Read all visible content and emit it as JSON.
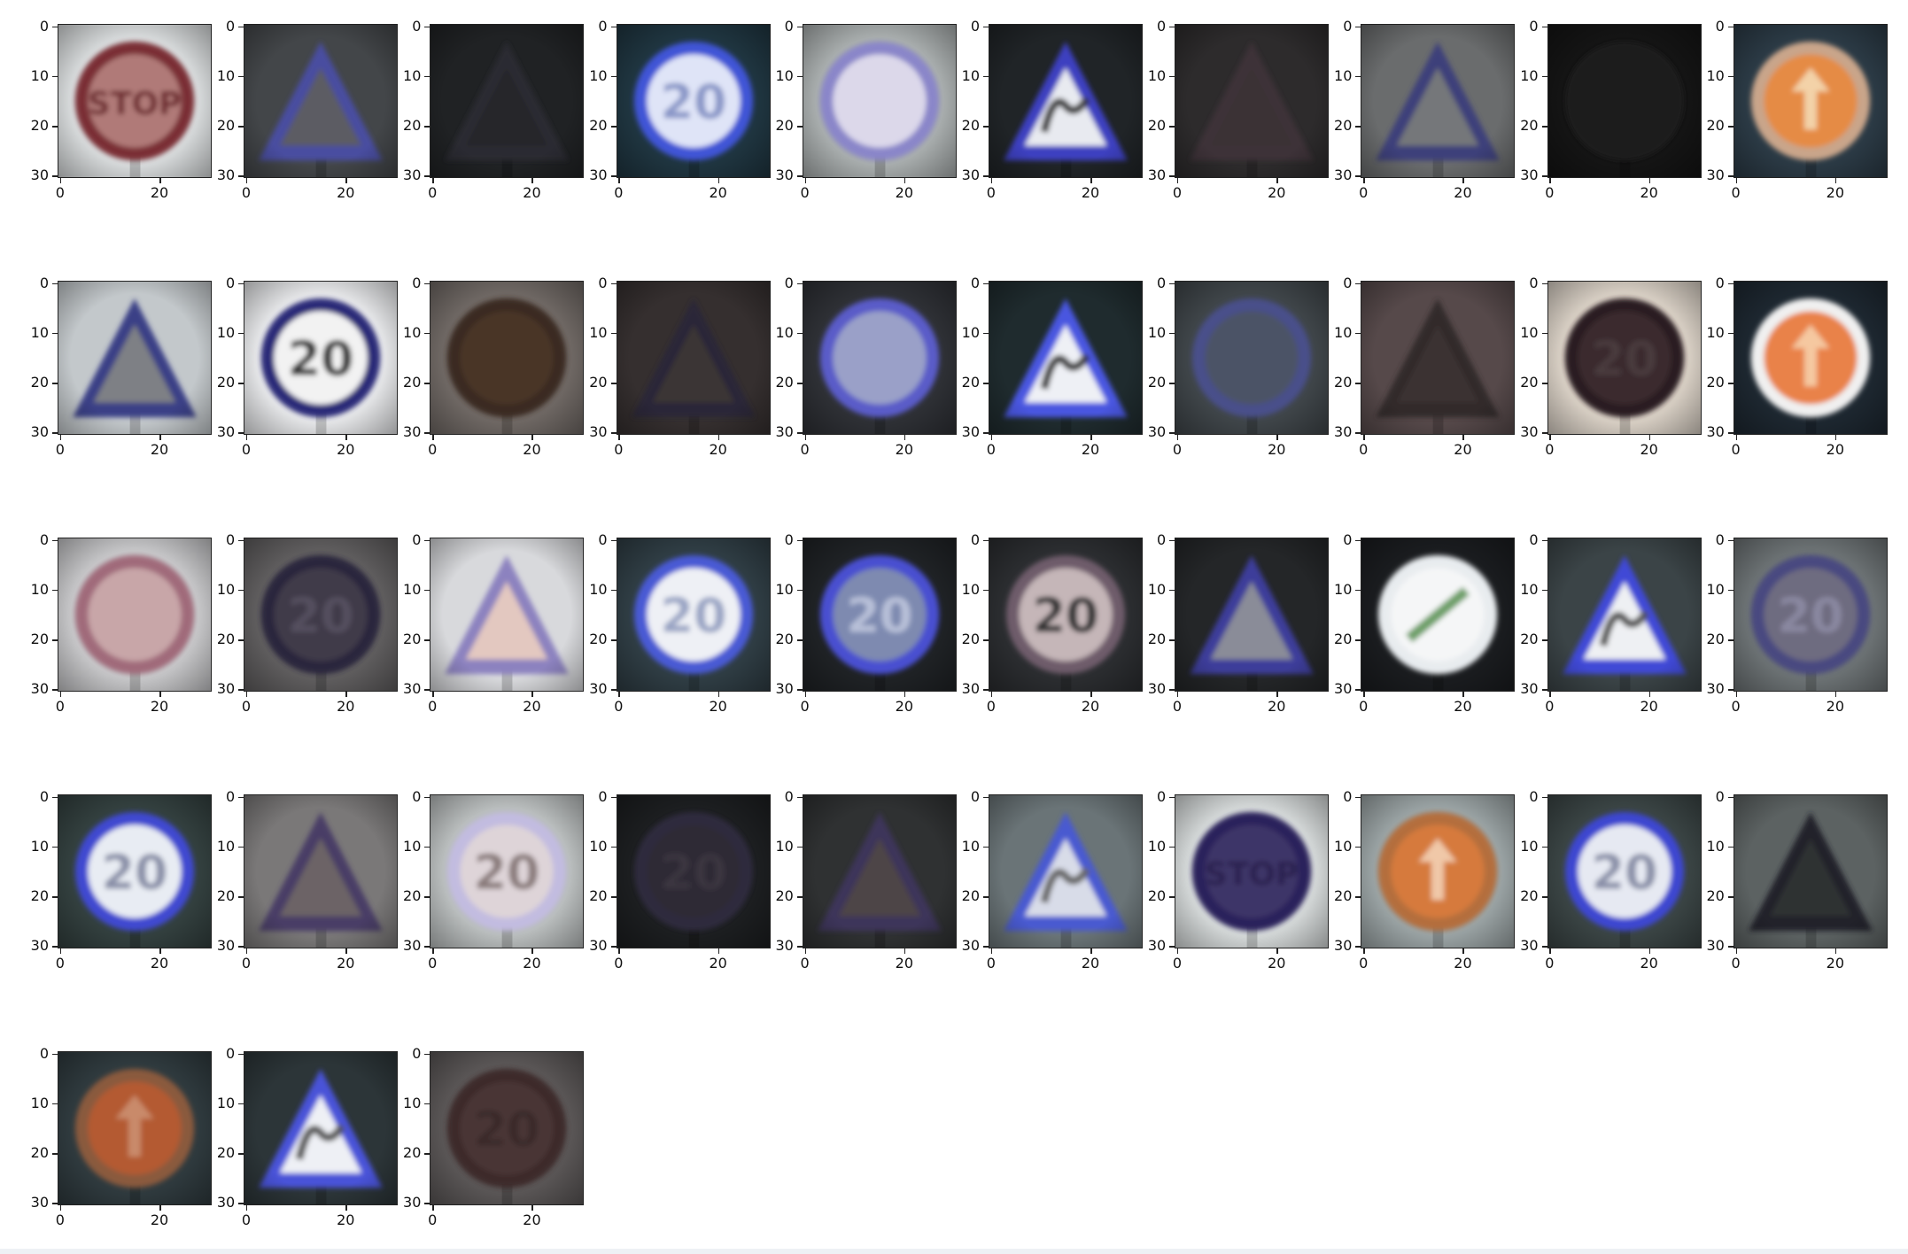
{
  "figure": {
    "columns": 10,
    "yticks": [
      "0",
      "10",
      "20",
      "30"
    ],
    "xticks": [
      "0",
      "20"
    ],
    "images": [
      {
        "shape": "circle",
        "bg": "#d7dadb",
        "edge": "#7a2f34",
        "fill": "#b07a78",
        "glyph": "STOP",
        "glyph_color": "#6d2b2e"
      },
      {
        "shape": "triangle",
        "bg": "#434649",
        "edge": "#4a4ea0",
        "fill": "#5b5c63",
        "glyph": "",
        "glyph_color": "#3a3a3d"
      },
      {
        "shape": "triangle",
        "bg": "#202224",
        "edge": "#2b2c33",
        "fill": "#26272a",
        "glyph": "",
        "glyph_color": "#222"
      },
      {
        "shape": "circle",
        "bg": "#1f3540",
        "edge": "#3f55d6",
        "fill": "#dfe4f7",
        "glyph": "20",
        "glyph_color": "#8a97c8"
      },
      {
        "shape": "circle",
        "bg": "#a8adad",
        "edge": "#8a86c9",
        "fill": "#dcd8ea",
        "glyph": "",
        "glyph_color": "#b8a8b8"
      },
      {
        "shape": "triangle",
        "bg": "#202427",
        "edge": "#3c3fc0",
        "fill": "#e8eaf0",
        "glyph": "bump",
        "glyph_color": "#3a3a3a"
      },
      {
        "shape": "triangle",
        "bg": "#2d2b2c",
        "edge": "#3e3338",
        "fill": "#3a3234",
        "glyph": "",
        "glyph_color": "#322"
      },
      {
        "shape": "triangle",
        "bg": "#6a6c6d",
        "edge": "#3e3f7a",
        "fill": "#75777a",
        "glyph": "",
        "glyph_color": "#555"
      },
      {
        "shape": "circle",
        "bg": "#141414",
        "edge": "#1c1a1b",
        "fill": "#1b1a1a",
        "glyph": "",
        "glyph_color": "#1e1e1e"
      },
      {
        "shape": "circle",
        "bg": "#2b3a45",
        "edge": "#c9a58a",
        "fill": "#e58b45",
        "glyph": "arrow",
        "glyph_color": "#f3d2a8"
      },
      {
        "shape": "triangle",
        "bg": "#c3c8cb",
        "edge": "#3b3f86",
        "fill": "#7e8085",
        "glyph": "",
        "glyph_color": "#555"
      },
      {
        "shape": "circle",
        "bg": "#e5e6e8",
        "edge": "#2c2a78",
        "fill": "#f2f2f2",
        "glyph": "20",
        "glyph_color": "#333"
      },
      {
        "shape": "circle",
        "bg": "#6f6864",
        "edge": "#3a2920",
        "fill": "#4a3426",
        "glyph": "",
        "glyph_color": "#3d2b21"
      },
      {
        "shape": "triangle",
        "bg": "#352f2f",
        "edge": "#2a2838",
        "fill": "#3a3535",
        "glyph": "",
        "glyph_color": "#2e2a2a"
      },
      {
        "shape": "circle",
        "bg": "#2e3035",
        "edge": "#5a5cc8",
        "fill": "#9aa0c8",
        "glyph": "",
        "glyph_color": "#c8cce0"
      },
      {
        "shape": "triangle",
        "bg": "#1f2b2e",
        "edge": "#4a56e0",
        "fill": "#eef0f5",
        "glyph": "bump",
        "glyph_color": "#3a3a3a"
      },
      {
        "shape": "circle",
        "bg": "#3f4549",
        "edge": "#4a4f8a",
        "fill": "#4b5366",
        "glyph": "",
        "glyph_color": "#555c6e"
      },
      {
        "shape": "triangle",
        "bg": "#56494a",
        "edge": "#312b2b",
        "fill": "#3a3232",
        "glyph": "",
        "glyph_color": "#2e2a2a"
      },
      {
        "shape": "circle",
        "bg": "#d8cfc4",
        "edge": "#2b1f23",
        "fill": "#3a2b2e",
        "glyph": "20",
        "glyph_color": "#4a3a3c"
      },
      {
        "shape": "circle",
        "bg": "#1d2730",
        "edge": "#f0f0f0",
        "fill": "#e9824a",
        "glyph": "arrow",
        "glyph_color": "#f5c8a0"
      },
      {
        "shape": "circle",
        "bg": "#c6c6c8",
        "edge": "#a06a7a",
        "fill": "#c8a6a8",
        "glyph": "",
        "glyph_color": "#9a7c80"
      },
      {
        "shape": "circle",
        "bg": "#5f5d5e",
        "edge": "#2a253c",
        "fill": "#403a4a",
        "glyph": "20",
        "glyph_color": "#55505e"
      },
      {
        "shape": "triangle",
        "bg": "#d8d9dc",
        "edge": "#8c82bf",
        "fill": "#e3c8c0",
        "glyph": "",
        "glyph_color": "#b9a39b"
      },
      {
        "shape": "circle",
        "bg": "#2f3d44",
        "edge": "#4a5ad4",
        "fill": "#eef0f5",
        "glyph": "20",
        "glyph_color": "#9aa4c4"
      },
      {
        "shape": "circle",
        "bg": "#1f2225",
        "edge": "#4a4fd0",
        "fill": "#7e8ab0",
        "glyph": "20",
        "glyph_color": "#b8c0d8"
      },
      {
        "shape": "circle",
        "bg": "#2b2d30",
        "edge": "#6e5c6a",
        "fill": "#c5b6b8",
        "glyph": "20",
        "glyph_color": "#333"
      },
      {
        "shape": "triangle",
        "bg": "#242628",
        "edge": "#3c3c9a",
        "fill": "#8a8c98",
        "glyph": "",
        "glyph_color": "#666"
      },
      {
        "shape": "circle",
        "bg": "#1a1c1f",
        "edge": "#e8ecef",
        "fill": "#f5f6f7",
        "glyph": "slash",
        "glyph_color": "#6fa06a"
      },
      {
        "shape": "triangle",
        "bg": "#3b4447",
        "edge": "#3f4ad6",
        "fill": "#eef0f3",
        "glyph": "bump",
        "glyph_color": "#555"
      },
      {
        "shape": "circle",
        "bg": "#6c7274",
        "edge": "#4a4a80",
        "fill": "#6e6c80",
        "glyph": "20",
        "glyph_color": "#8a88a0"
      },
      {
        "shape": "circle",
        "bg": "#33403f",
        "edge": "#4048d0",
        "fill": "#e8ecf3",
        "glyph": "20",
        "glyph_color": "#8a90a8"
      },
      {
        "shape": "triangle",
        "bg": "#7a7878",
        "edge": "#4a3e66",
        "fill": "#6c6466",
        "glyph": "",
        "glyph_color": "#555"
      },
      {
        "shape": "circle",
        "bg": "#b9bdbd",
        "edge": "#c2bce0",
        "fill": "#ded4d8",
        "glyph": "20",
        "glyph_color": "#8a7c7c"
      },
      {
        "shape": "circle",
        "bg": "#1c1e20",
        "edge": "#2f2b3e",
        "fill": "#2e2b35",
        "glyph": "20",
        "glyph_color": "#3a3640"
      },
      {
        "shape": "triangle",
        "bg": "#2f3132",
        "edge": "#3e355a",
        "fill": "#4e4446",
        "glyph": "",
        "glyph_color": "#3a3333"
      },
      {
        "shape": "triangle",
        "bg": "#6a7477",
        "edge": "#4a5ad0",
        "fill": "#d8dce8",
        "glyph": "bump",
        "glyph_color": "#666"
      },
      {
        "shape": "circle",
        "bg": "#d4d8d8",
        "edge": "#2a245c",
        "fill": "#3c3568",
        "glyph": "STOP",
        "glyph_color": "#2a2450"
      },
      {
        "shape": "circle",
        "bg": "#9aa3a4",
        "edge": "#b46e3e",
        "fill": "#d67a3c",
        "glyph": "arrow",
        "glyph_color": "#f0c8a8"
      },
      {
        "shape": "circle",
        "bg": "#3a4444",
        "edge": "#3e46d0",
        "fill": "#e6e9f2",
        "glyph": "20",
        "glyph_color": "#8a90a8"
      },
      {
        "shape": "triangle",
        "bg": "#5c6262",
        "edge": "#20212c",
        "fill": "#2e3032",
        "glyph": "",
        "glyph_color": "#2b2b2b"
      },
      {
        "shape": "circle",
        "bg": "#2f3a3e",
        "edge": "#8a5a3e",
        "fill": "#b45a32",
        "glyph": "arrow",
        "glyph_color": "#c98a6a"
      },
      {
        "shape": "triangle",
        "bg": "#2c3538",
        "edge": "#4a52d8",
        "fill": "#eef0f5",
        "glyph": "bump",
        "glyph_color": "#555"
      },
      {
        "shape": "circle",
        "bg": "#5a5656",
        "edge": "#3e2a2a",
        "fill": "#4a3636",
        "glyph": "20",
        "glyph_color": "#3a2a2a"
      }
    ]
  }
}
